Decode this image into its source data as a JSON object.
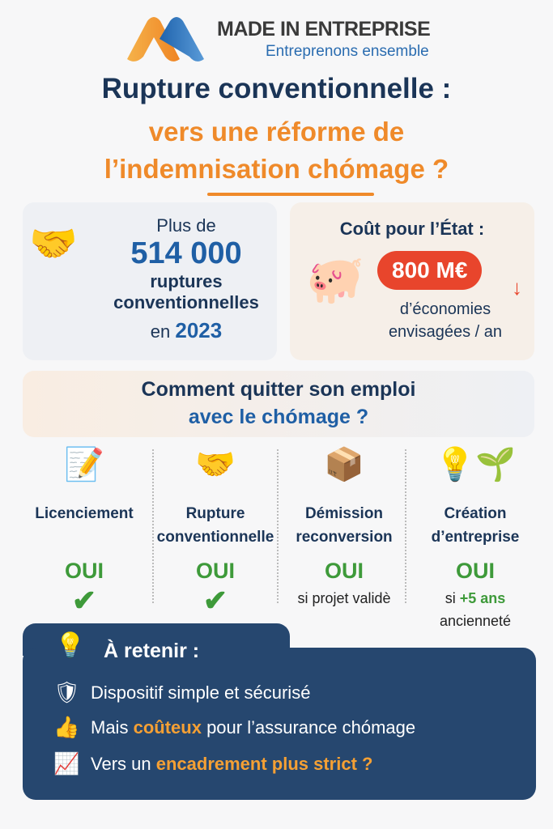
{
  "brand": {
    "name": "MADE IN ENTREPRISE",
    "tagline": "Entreprenons ensemble",
    "colors": {
      "orange": "#f0922e",
      "blue": "#2a6cb0"
    }
  },
  "title": {
    "line1": "Rupture conventionnelle :",
    "line2": "vers une réforme de",
    "line3": "l’indemnisation chómage ?"
  },
  "stat": {
    "prefix": "Plus de",
    "value": "514 000",
    "line1": "ruptures",
    "line2": "conventionnelles",
    "year_prefix": "en",
    "year": "2023",
    "icon": "handshake-icon"
  },
  "cost": {
    "title": "Coût pour l’État :",
    "amount": "800 M€",
    "line1": "d’économies",
    "line2": "envisagées / an",
    "icon": "piggy-bank-icon"
  },
  "section": {
    "line1": "Comment quitter son emploi",
    "line2": "avec le chómage ?"
  },
  "options": [
    {
      "label1": "Licenciement",
      "label2": "",
      "answer": "OUI",
      "check": true,
      "icon": "document-pen-icon"
    },
    {
      "label1": "Rupture",
      "label2": "conventionnelle",
      "answer": "OUI",
      "check": true,
      "icon": "handshake-icon"
    },
    {
      "label1": "Démission",
      "label2": "reconversion",
      "answer": "OUI",
      "note": "si projet validè",
      "icon": "person-box-arrow-icon"
    },
    {
      "label1": "Création",
      "label2": "d’entreprise",
      "answer": "OUI",
      "note_pre": "si",
      "note_hl": "+5 ans",
      "note2": "ancienneté",
      "icon": "lightbulb-plant-icon"
    }
  ],
  "retenir": {
    "title": "À retenir :",
    "items": [
      {
        "text": "Dispositif simple et sécurisé",
        "icon": "shield-icon"
      },
      {
        "pre": "Mais",
        "hl": "coûteux",
        "post": "pour l’assurance chómage",
        "icon": "thumbs-up-icon"
      },
      {
        "pre": "Vers un",
        "hl": "encadrement plus strict ?",
        "icon": "chart-up-icon"
      }
    ]
  },
  "colors": {
    "navy": "#1b3557",
    "orange": "#ef8a2a",
    "green": "#3e9a3a",
    "panel": "#26476f",
    "red": "#e8452c"
  }
}
